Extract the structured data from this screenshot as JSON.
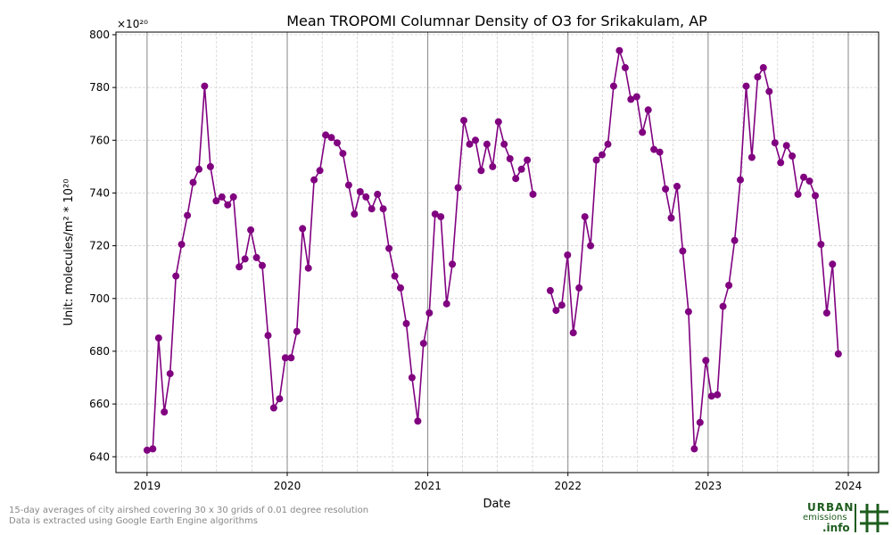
{
  "chart_data": {
    "type": "line",
    "title": "Mean TROPOMI Columnar Density of O3 for Srikakulam, AP",
    "xlabel": "Date",
    "ylabel": "Unit: molecules/m² * 10²⁰",
    "offset_text": "×10²⁰",
    "xlim": [
      "2018-10-12",
      "2024-03-20"
    ],
    "ylim": [
      634,
      801
    ],
    "x_ticks": [
      "2019-01-01",
      "2020-01-01",
      "2021-01-01",
      "2022-01-01",
      "2023-01-01",
      "2024-01-01"
    ],
    "x_tick_labels": [
      "2019",
      "2020",
      "2021",
      "2022",
      "2023",
      "2024"
    ],
    "y_ticks": [
      640,
      660,
      680,
      700,
      720,
      740,
      760,
      780,
      800
    ],
    "y_tick_labels": [
      "640",
      "660",
      "680",
      "700",
      "720",
      "740",
      "760",
      "780",
      "800"
    ],
    "grid": true,
    "series": [
      {
        "color": "#800080",
        "points": [
          [
            "2019-01-01",
            642.5
          ],
          [
            "2019-01-16",
            643
          ],
          [
            "2019-01-31",
            685
          ],
          [
            "2019-02-15",
            657
          ],
          [
            "2019-03-02",
            671.5
          ],
          [
            "2019-03-17",
            708.5
          ],
          [
            "2019-04-01",
            720.5
          ],
          [
            "2019-04-16",
            731.5
          ],
          [
            "2019-05-01",
            744
          ],
          [
            "2019-05-16",
            749
          ],
          [
            "2019-05-31",
            780.5
          ],
          [
            "2019-06-15",
            750
          ],
          [
            "2019-06-30",
            737
          ],
          [
            "2019-07-15",
            738.5
          ],
          [
            "2019-07-30",
            735.5
          ],
          [
            "2019-08-14",
            738.5
          ],
          [
            "2019-08-29",
            712
          ],
          [
            "2019-09-13",
            715
          ],
          [
            "2019-09-28",
            726
          ],
          [
            "2019-10-13",
            715.5
          ],
          [
            "2019-10-28",
            712.5
          ],
          [
            "2019-11-12",
            686
          ],
          [
            "2019-11-27",
            658.5
          ],
          [
            "2019-12-12",
            662
          ],
          [
            "2019-12-27",
            677.5
          ],
          [
            "2020-01-11",
            677.5
          ],
          [
            "2020-01-26",
            687.5
          ],
          [
            "2020-02-10",
            726.5
          ],
          [
            "2020-02-25",
            711.5
          ],
          [
            "2020-03-11",
            745
          ],
          [
            "2020-03-26",
            748.5
          ],
          [
            "2020-04-10",
            762
          ],
          [
            "2020-04-25",
            761
          ],
          [
            "2020-05-10",
            759
          ],
          [
            "2020-05-25",
            755
          ],
          [
            "2020-06-09",
            743
          ],
          [
            "2020-06-24",
            732
          ],
          [
            "2020-07-09",
            740.5
          ],
          [
            "2020-07-24",
            738.5
          ],
          [
            "2020-08-08",
            734
          ],
          [
            "2020-08-23",
            739.5
          ],
          [
            "2020-09-07",
            734
          ],
          [
            "2020-09-22",
            719
          ],
          [
            "2020-10-07",
            708.5
          ],
          [
            "2020-10-22",
            704
          ],
          [
            "2020-11-06",
            690.5
          ],
          [
            "2020-11-21",
            670
          ],
          [
            "2020-12-06",
            653.5
          ],
          [
            "2020-12-21",
            683
          ],
          [
            "2021-01-05",
            694.5
          ],
          [
            "2021-01-20",
            732
          ],
          [
            "2021-02-04",
            731
          ],
          [
            "2021-02-19",
            698
          ],
          [
            "2021-03-06",
            713
          ],
          [
            "2021-03-21",
            742
          ],
          [
            "2021-04-05",
            767.5
          ],
          [
            "2021-04-20",
            758.5
          ],
          [
            "2021-05-05",
            760
          ],
          [
            "2021-05-20",
            748.5
          ],
          [
            "2021-06-04",
            758.5
          ],
          [
            "2021-06-19",
            750
          ],
          [
            "2021-07-04",
            767
          ],
          [
            "2021-07-19",
            758.5
          ],
          [
            "2021-08-03",
            753
          ],
          [
            "2021-08-18",
            745.5
          ],
          [
            "2021-09-02",
            749
          ],
          [
            "2021-09-17",
            752.5
          ],
          [
            "2021-10-02",
            739.5
          ],
          null,
          [
            "2021-11-16",
            703
          ],
          [
            "2021-12-01",
            695.5
          ],
          [
            "2021-12-16",
            697.5
          ],
          [
            "2021-12-31",
            716.5
          ],
          [
            "2022-01-15",
            687
          ],
          [
            "2022-01-30",
            704
          ],
          [
            "2022-02-14",
            731
          ],
          [
            "2022-03-01",
            720
          ],
          [
            "2022-03-16",
            752.5
          ],
          [
            "2022-03-31",
            754.5
          ],
          [
            "2022-04-15",
            758.5
          ],
          [
            "2022-04-30",
            780.5
          ],
          [
            "2022-05-15",
            794
          ],
          [
            "2022-05-30",
            787.5
          ],
          [
            "2022-06-14",
            775.5
          ],
          [
            "2022-06-29",
            776.5
          ],
          [
            "2022-07-14",
            763
          ],
          [
            "2022-07-29",
            771.5
          ],
          [
            "2022-08-13",
            756.5
          ],
          [
            "2022-08-28",
            755.5
          ],
          [
            "2022-09-12",
            741.5
          ],
          [
            "2022-09-27",
            730.5
          ],
          [
            "2022-10-12",
            742.5
          ],
          [
            "2022-10-27",
            718
          ],
          [
            "2022-11-11",
            695
          ],
          [
            "2022-11-26",
            643
          ],
          [
            "2022-12-11",
            653
          ],
          [
            "2022-12-26",
            676.5
          ],
          [
            "2023-01-10",
            663
          ],
          [
            "2023-01-25",
            663.5
          ],
          [
            "2023-02-09",
            697
          ],
          [
            "2023-02-24",
            705
          ],
          [
            "2023-03-11",
            722
          ],
          [
            "2023-03-26",
            745
          ],
          [
            "2023-04-10",
            780.5
          ],
          [
            "2023-04-25",
            753.5
          ],
          [
            "2023-05-10",
            784
          ],
          [
            "2023-05-25",
            787.5
          ],
          [
            "2023-06-09",
            778.5
          ],
          [
            "2023-06-24",
            759
          ],
          [
            "2023-07-09",
            751.5
          ],
          [
            "2023-07-24",
            758
          ],
          [
            "2023-08-08",
            754
          ],
          [
            "2023-08-23",
            739.5
          ],
          [
            "2023-09-07",
            746
          ],
          [
            "2023-09-22",
            744.5
          ],
          [
            "2023-10-07",
            739
          ],
          [
            "2023-10-22",
            720.5
          ],
          [
            "2023-11-06",
            694.5
          ],
          [
            "2023-11-21",
            713
          ],
          [
            "2023-12-06",
            679
          ]
        ]
      }
    ]
  },
  "footnotes": [
    "15-day averages of city airshed covering 30 x 30 grids of 0.01 degree resolution",
    "Data is extracted using Google Earth Engine algorithms"
  ],
  "logo": {
    "line1": "URBAN",
    "line2": "emissions",
    "line3": ".info",
    "color": "#1e5c1e"
  }
}
